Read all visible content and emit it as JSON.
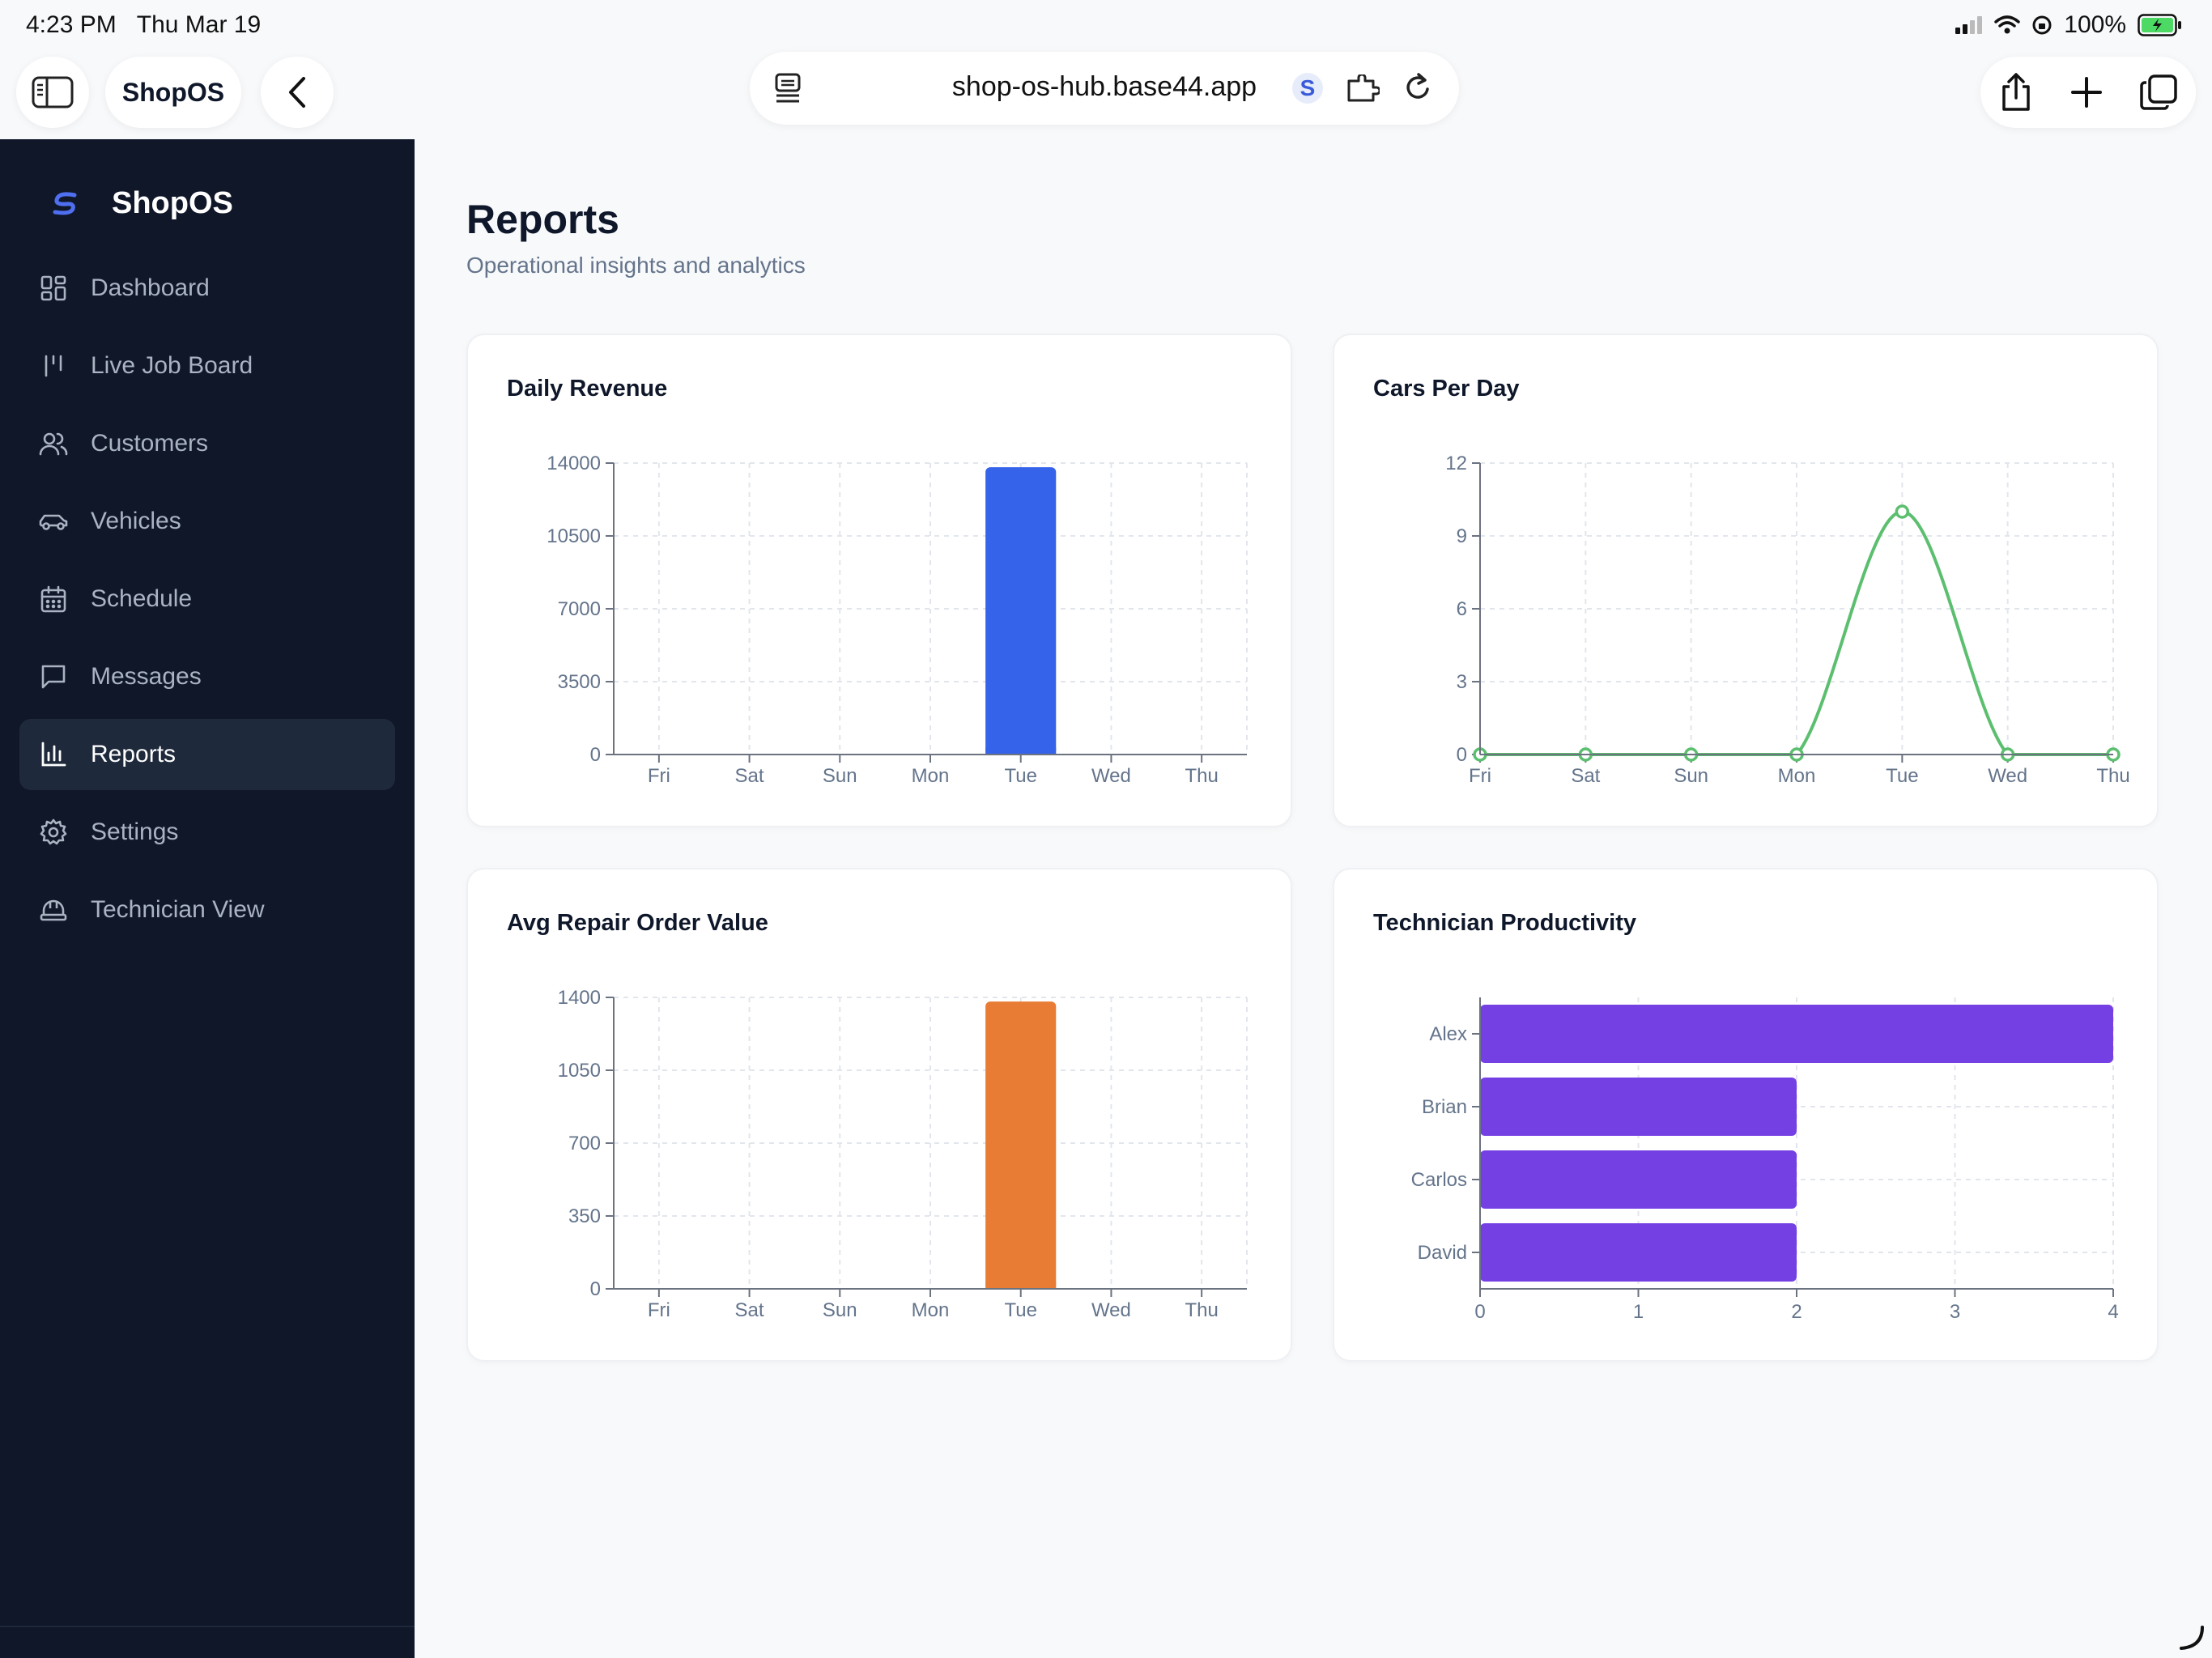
{
  "status_bar": {
    "time": "4:23 PM",
    "date": "Thu Mar 19",
    "battery": "100%"
  },
  "browser": {
    "tab_title": "ShopOS",
    "url": "shop-os-hub.base44.app"
  },
  "sidebar": {
    "brand": "ShopOS",
    "items": [
      {
        "label": "Dashboard",
        "icon": "dashboard-icon",
        "active": false
      },
      {
        "label": "Live Job Board",
        "icon": "job-board-icon",
        "active": false
      },
      {
        "label": "Customers",
        "icon": "users-icon",
        "active": false
      },
      {
        "label": "Vehicles",
        "icon": "car-icon",
        "active": false
      },
      {
        "label": "Schedule",
        "icon": "calendar-icon",
        "active": false
      },
      {
        "label": "Messages",
        "icon": "message-icon",
        "active": false
      },
      {
        "label": "Reports",
        "icon": "bar-chart-icon",
        "active": true
      },
      {
        "label": "Settings",
        "icon": "gear-icon",
        "active": false
      },
      {
        "label": "Technician View",
        "icon": "hard-hat-icon",
        "active": false
      }
    ]
  },
  "page": {
    "title": "Reports",
    "subtitle": "Operational insights and analytics"
  },
  "colors": {
    "revenue": "#3563e9",
    "cars": "#5cbf6f",
    "aro": "#e87c35",
    "tech": "#7540e3",
    "sidebar_bg": "#0f1729"
  },
  "chart_data": [
    {
      "id": "daily-revenue",
      "type": "bar",
      "title": "Daily Revenue",
      "categories": [
        "Fri",
        "Sat",
        "Sun",
        "Mon",
        "Tue",
        "Wed",
        "Thu"
      ],
      "values": [
        0,
        0,
        0,
        0,
        13800,
        0,
        0
      ],
      "yticks": [
        0,
        3500,
        7000,
        10500,
        14000
      ],
      "ylim": [
        0,
        14000
      ],
      "grid": true,
      "color": "#3563e9"
    },
    {
      "id": "cars-per-day",
      "type": "line",
      "title": "Cars Per Day",
      "categories": [
        "Fri",
        "Sat",
        "Sun",
        "Mon",
        "Tue",
        "Wed",
        "Thu"
      ],
      "values": [
        0,
        0,
        0,
        0,
        10,
        0,
        0
      ],
      "yticks": [
        0,
        3,
        6,
        9,
        12
      ],
      "ylim": [
        0,
        12
      ],
      "grid": true,
      "color": "#5cbf6f"
    },
    {
      "id": "avg-repair-order-value",
      "type": "bar",
      "title": "Avg Repair Order Value",
      "categories": [
        "Fri",
        "Sat",
        "Sun",
        "Mon",
        "Tue",
        "Wed",
        "Thu"
      ],
      "values": [
        0,
        0,
        0,
        0,
        1380,
        0,
        0
      ],
      "yticks": [
        0,
        350,
        700,
        1050,
        1400
      ],
      "ylim": [
        0,
        1400
      ],
      "grid": true,
      "color": "#e87c35"
    },
    {
      "id": "technician-productivity",
      "type": "bar",
      "orientation": "horizontal",
      "title": "Technician Productivity",
      "categories": [
        "Alex",
        "Brian",
        "Carlos",
        "David"
      ],
      "values": [
        4,
        2,
        2,
        2
      ],
      "xticks": [
        0,
        1,
        2,
        3,
        4
      ],
      "xlim": [
        0,
        4
      ],
      "grid": true,
      "color": "#7540e3"
    }
  ]
}
